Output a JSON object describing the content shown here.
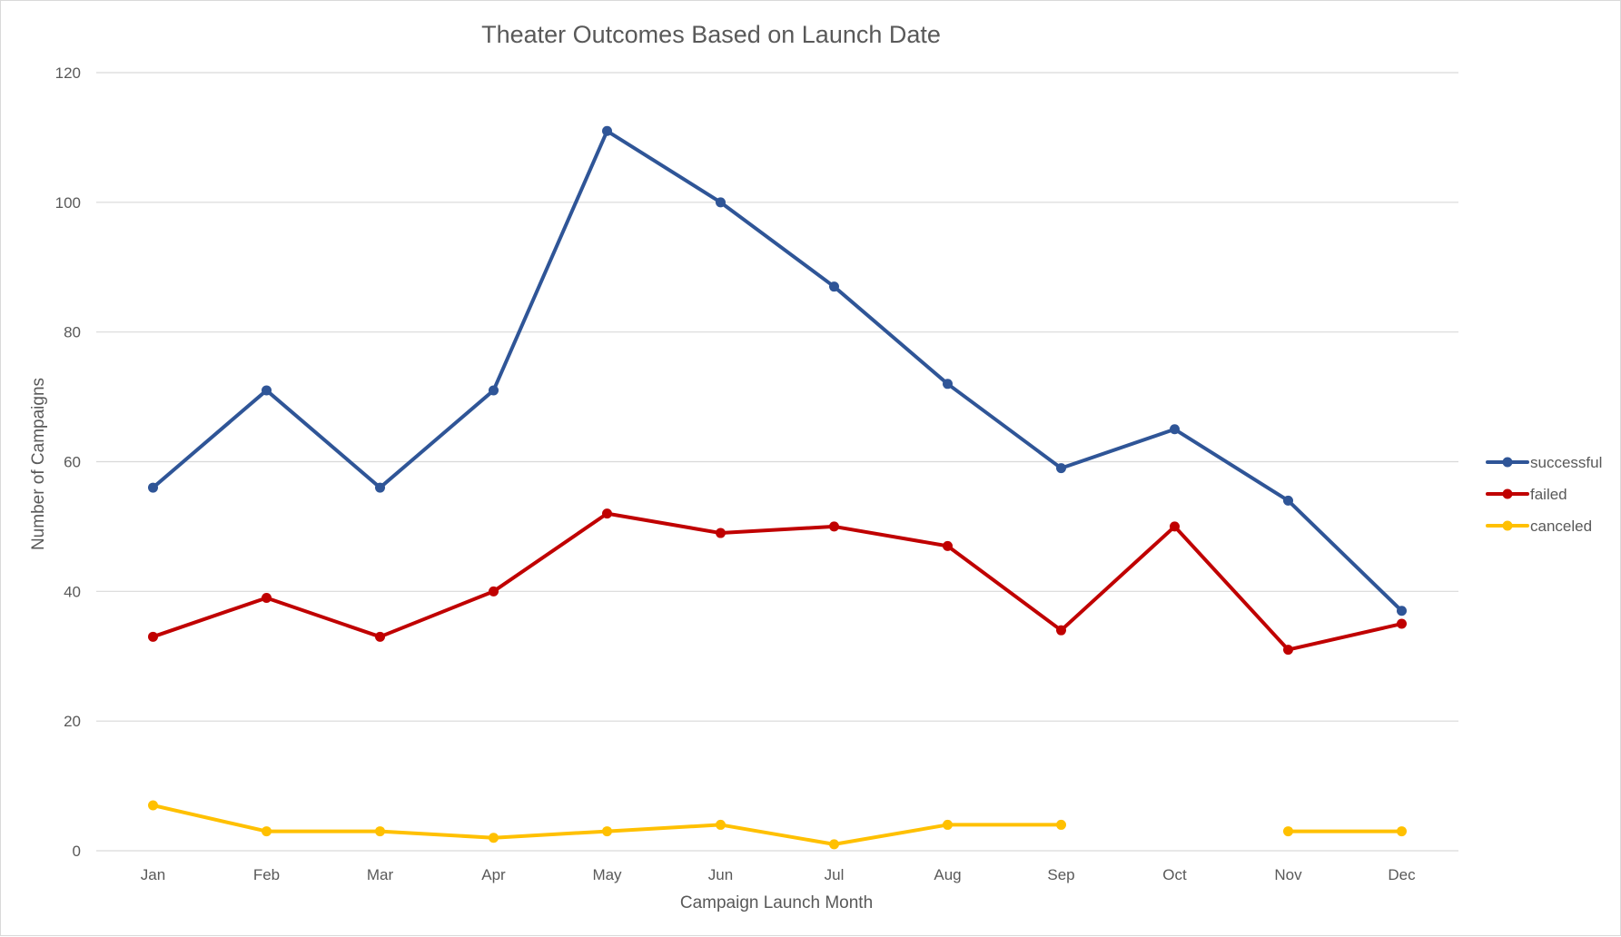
{
  "chart_data": {
    "type": "line",
    "title": "Theater Outcomes Based on Launch Date",
    "xlabel": "Campaign Launch Month",
    "ylabel": "Number of Campaigns",
    "categories": [
      "Jan",
      "Feb",
      "Mar",
      "Apr",
      "May",
      "Jun",
      "Jul",
      "Aug",
      "Sep",
      "Oct",
      "Nov",
      "Dec"
    ],
    "ylim": [
      0,
      120
    ],
    "yticks": [
      0,
      20,
      40,
      60,
      80,
      100,
      120
    ],
    "grid": true,
    "legend_position": "right",
    "series": [
      {
        "name": "successful",
        "color": "#2f5597",
        "values": [
          56,
          71,
          56,
          71,
          111,
          100,
          87,
          72,
          59,
          65,
          54,
          37
        ]
      },
      {
        "name": "failed",
        "color": "#c00000",
        "values": [
          33,
          39,
          33,
          40,
          52,
          49,
          50,
          47,
          34,
          50,
          31,
          35
        ]
      },
      {
        "name": "canceled",
        "color": "#ffc000",
        "values": [
          7,
          3,
          3,
          2,
          3,
          4,
          1,
          4,
          4,
          null,
          3,
          3
        ]
      }
    ]
  }
}
